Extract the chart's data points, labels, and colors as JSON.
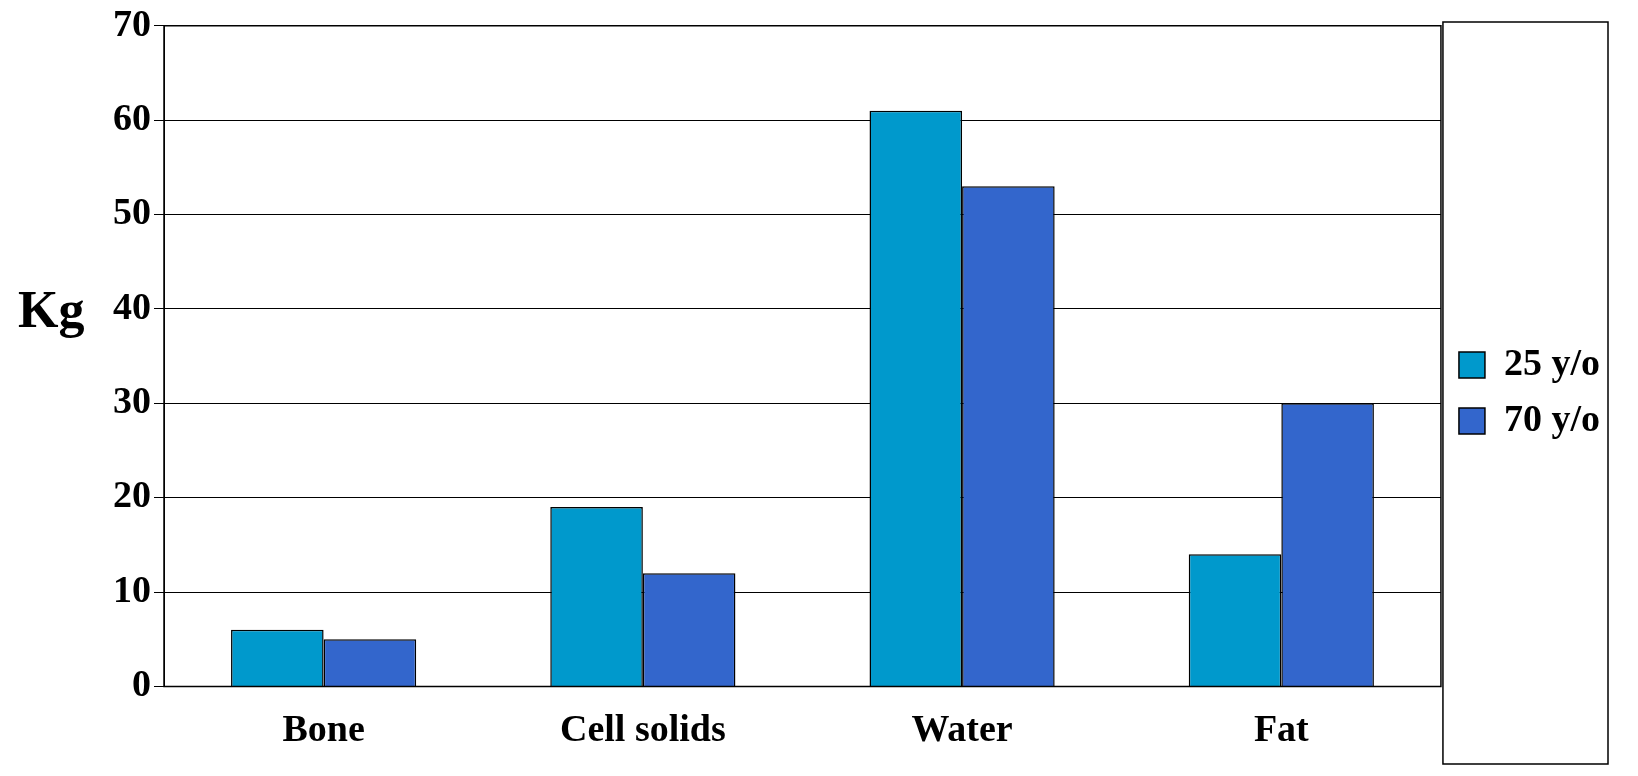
{
  "chart_data": {
    "type": "bar",
    "ylabel": "Kg",
    "categories": [
      "Bone",
      "Cell solids",
      "Water",
      "Fat"
    ],
    "series": [
      {
        "name": "25 y/o",
        "color": "#0099cc",
        "values": [
          6,
          19,
          61,
          14
        ]
      },
      {
        "name": "70 y/o",
        "color": "#3366cc",
        "values": [
          5,
          12,
          53,
          30
        ]
      }
    ],
    "ylim": [
      0,
      70
    ],
    "yticks": [
      0,
      10,
      20,
      30,
      40,
      50,
      60,
      70
    ],
    "grid": "y",
    "legend": "right"
  }
}
